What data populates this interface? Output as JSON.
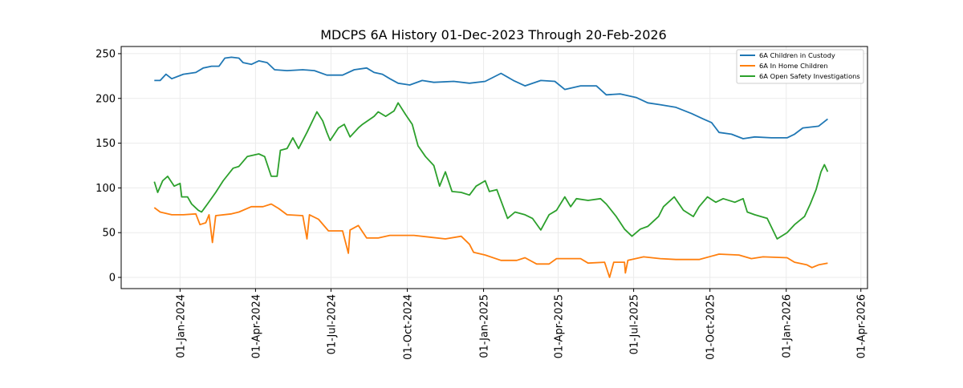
{
  "chart_data": {
    "type": "line",
    "title": "MDCPS 6A History 01-Dec-2023 Through 20-Feb-2026",
    "xlabel": "",
    "ylabel": "",
    "x_unit": "days since 2023-12-01",
    "start_date": "2023-12-01",
    "end_date": "2026-02-20",
    "xlim_days": [
      -40,
      860
    ],
    "ylim": [
      -12.5,
      258
    ],
    "grid": true,
    "legend_placement": "top-right",
    "x_ticks": [
      {
        "label": "01-Jan-2024",
        "day": 31
      },
      {
        "label": "01-Apr-2024",
        "day": 122
      },
      {
        "label": "01-Jul-2024",
        "day": 213
      },
      {
        "label": "01-Oct-2024",
        "day": 305
      },
      {
        "label": "01-Jan-2025",
        "day": 397
      },
      {
        "label": "01-Apr-2025",
        "day": 487
      },
      {
        "label": "01-Jul-2025",
        "day": 578
      },
      {
        "label": "01-Oct-2025",
        "day": 670
      },
      {
        "label": "01-Jan-2026",
        "day": 762
      },
      {
        "label": "01-Apr-2026",
        "day": 852
      }
    ],
    "y_ticks": [
      {
        "label": "0",
        "value": 0
      },
      {
        "label": "50",
        "value": 50
      },
      {
        "label": "100",
        "value": 100
      },
      {
        "label": "150",
        "value": 150
      },
      {
        "label": "200",
        "value": 200
      },
      {
        "label": "250",
        "value": 250
      }
    ],
    "series": [
      {
        "name": "6A Children in Custody",
        "color": "#1f77b4",
        "days": [
          0,
          7,
          14,
          21,
          35,
          50,
          59,
          69,
          78,
          85,
          93,
          102,
          107,
          117,
          126,
          136,
          145,
          160,
          179,
          193,
          208,
          227,
          241,
          256,
          265,
          275,
          284,
          294,
          308,
          323,
          337,
          361,
          380,
          399,
          418,
          433,
          447,
          466,
          483,
          495,
          514,
          533,
          545,
          562,
          581,
          595,
          610,
          629,
          648,
          662,
          672,
          681,
          696,
          710,
          724,
          744,
          763,
          772,
          782,
          801,
          812
        ],
        "values": [
          220,
          220,
          227,
          222,
          227,
          229,
          234,
          236,
          236,
          245,
          246,
          245,
          240,
          238,
          242,
          240,
          232,
          231,
          232,
          231,
          226,
          226,
          232,
          234,
          229,
          227,
          222,
          217,
          215,
          220,
          218,
          219,
          217,
          219,
          228,
          220,
          214,
          220,
          219,
          210,
          214,
          214,
          204,
          205,
          201,
          195,
          193,
          190,
          183,
          177,
          173,
          162,
          160,
          155,
          157,
          156,
          156,
          160,
          167,
          169,
          177
        ]
      },
      {
        "name": "6A In Home Children",
        "color": "#ff7f0e",
        "days": [
          0,
          7,
          21,
          35,
          50,
          55,
          62,
          66,
          70,
          74,
          93,
          102,
          117,
          131,
          141,
          150,
          160,
          179,
          184,
          187,
          198,
          210,
          227,
          234,
          236,
          246,
          256,
          270,
          284,
          313,
          332,
          351,
          370,
          380,
          385,
          399,
          418,
          437,
          447,
          461,
          476,
          485,
          514,
          523,
          543,
          549,
          554,
          567,
          568,
          571,
          590,
          610,
          629,
          657,
          681,
          705,
          720,
          734,
          763,
          772,
          787,
          793,
          801,
          812
        ],
        "values": [
          78,
          73,
          70,
          70,
          71,
          59,
          61,
          70,
          39,
          69,
          71,
          73,
          79,
          79,
          82,
          77,
          70,
          69,
          43,
          70,
          65,
          52,
          52,
          27,
          53,
          58,
          44,
          44,
          47,
          47,
          45,
          43,
          46,
          37,
          28,
          25,
          19,
          19,
          22,
          15,
          15,
          21,
          21,
          16,
          17,
          0,
          17,
          17,
          5,
          19,
          23,
          21,
          20,
          20,
          26,
          25,
          21,
          23,
          22,
          17,
          14,
          11,
          14,
          16
        ]
      },
      {
        "name": "6A Open Safety Investigations",
        "color": "#2ca02c",
        "days": [
          0,
          4,
          10,
          16,
          24,
          31,
          33,
          40,
          45,
          53,
          57,
          64,
          74,
          83,
          95,
          102,
          112,
          126,
          133,
          141,
          148,
          152,
          160,
          167,
          174,
          184,
          196,
          203,
          208,
          212,
          222,
          229,
          236,
          246,
          251,
          265,
          270,
          279,
          289,
          294,
          303,
          311,
          318,
          327,
          337,
          344,
          351,
          359,
          370,
          380,
          388,
          399,
          404,
          413,
          426,
          435,
          447,
          456,
          466,
          476,
          485,
          495,
          502,
          509,
          523,
          538,
          545,
          557,
          567,
          576,
          586,
          595,
          608,
          614,
          627,
          638,
          650,
          657,
          667,
          677,
          686,
          700,
          710,
          715,
          724,
          739,
          751,
          763,
          772,
          784,
          791,
          798,
          804,
          808,
          812
        ],
        "values": [
          107,
          95,
          108,
          113,
          102,
          105,
          90,
          90,
          82,
          75,
          73,
          82,
          95,
          108,
          122,
          124,
          135,
          138,
          135,
          113,
          113,
          142,
          144,
          156,
          144,
          162,
          185,
          175,
          162,
          153,
          167,
          171,
          157,
          167,
          171,
          180,
          185,
          180,
          186,
          195,
          182,
          171,
          147,
          135,
          125,
          102,
          118,
          96,
          95,
          92,
          102,
          108,
          96,
          98,
          66,
          73,
          70,
          66,
          53,
          70,
          75,
          90,
          79,
          88,
          86,
          88,
          82,
          68,
          54,
          46,
          54,
          57,
          68,
          79,
          90,
          75,
          68,
          79,
          90,
          84,
          88,
          84,
          88,
          73,
          70,
          66,
          43,
          50,
          59,
          68,
          82,
          98,
          118,
          126,
          118
        ]
      }
    ]
  }
}
